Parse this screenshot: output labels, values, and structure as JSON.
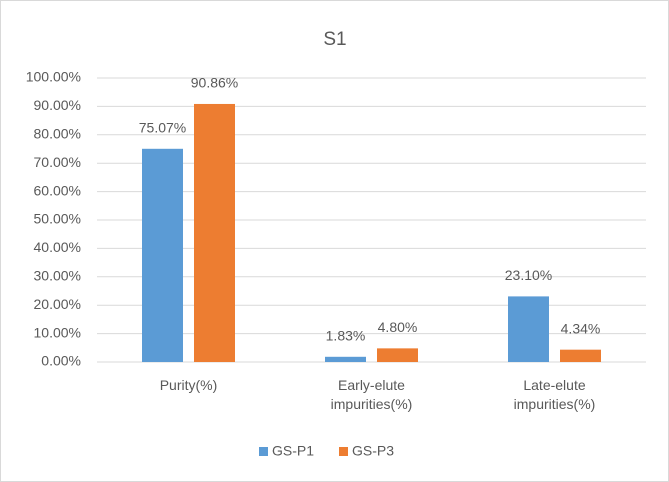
{
  "chart_data": {
    "type": "bar",
    "title": "S1",
    "categories": [
      "Purity(%)",
      "Early-elute impurities(%)",
      "Late-elute impurities(%)"
    ],
    "series": [
      {
        "name": "GS-P1",
        "color": "#5b9bd5",
        "values": [
          75.07,
          1.83,
          23.1
        ],
        "value_labels": [
          "75.07%",
          "1.83%",
          "23.10%"
        ]
      },
      {
        "name": "GS-P3",
        "color": "#ed7d31",
        "values": [
          90.86,
          4.8,
          4.34
        ],
        "value_labels": [
          "90.86%",
          "4.80%",
          "4.34%"
        ]
      }
    ],
    "ylim": [
      0,
      100
    ],
    "yticks": [
      {
        "value": 0,
        "label": "0.00%"
      },
      {
        "value": 10,
        "label": "10.00%"
      },
      {
        "value": 20,
        "label": "20.00%"
      },
      {
        "value": 30,
        "label": "30.00%"
      },
      {
        "value": 40,
        "label": "40.00%"
      },
      {
        "value": 50,
        "label": "50.00%"
      },
      {
        "value": 60,
        "label": "60.00%"
      },
      {
        "value": 70,
        "label": "70.00%"
      },
      {
        "value": 80,
        "label": "80.00%"
      },
      {
        "value": 90,
        "label": "90.00%"
      },
      {
        "value": 100,
        "label": "100.00%"
      }
    ],
    "grid": true,
    "legend": "bottom"
  }
}
